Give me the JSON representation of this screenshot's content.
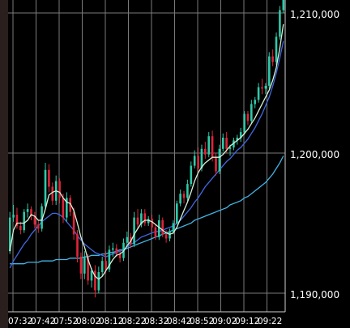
{
  "chart_data": {
    "type": "candlestick",
    "x_tick_labels": [
      "07:32",
      "07:42",
      "07:52",
      "08:02",
      "08:12",
      "08:22",
      "08:32",
      "08:42",
      "08:52",
      "09:02",
      "09:12",
      "09:22"
    ],
    "y_tick_labels": [
      "1,190,000",
      "1,200,000",
      "1,210,000"
    ],
    "y_ticks": [
      1190000,
      1200000,
      1210000
    ],
    "ylim": [
      1189000,
      1211000
    ],
    "grid": true,
    "colors": {
      "background": "#000000",
      "grid": "#7a7a7a",
      "up": "#2ec9a8",
      "down": "#e0253a",
      "ma_short": "#d6f2d6",
      "ma_mid": "#4169e1",
      "ma_long": "#42b4e6"
    },
    "series": [
      {
        "values": [
          [
            1193000,
            1195800,
            1192800,
            1195400
          ],
          [
            1195400,
            1196300,
            1195100,
            1195600
          ],
          [
            1195600,
            1196100,
            1194600,
            1194800
          ],
          [
            1194800,
            1195100,
            1194200,
            1194500
          ],
          [
            1194500,
            1196000,
            1194300,
            1195800
          ],
          [
            1195800,
            1196400,
            1195400,
            1196000
          ],
          [
            1196000,
            1196200,
            1195200,
            1195500
          ],
          [
            1195500,
            1195800,
            1194600,
            1194900
          ],
          [
            1194900,
            1195200,
            1194300,
            1194600
          ],
          [
            1194600,
            1196400,
            1194400,
            1196200
          ],
          [
            1196200,
            1199300,
            1196000,
            1198800
          ],
          [
            1198800,
            1199200,
            1197200,
            1197600
          ],
          [
            1197600,
            1197900,
            1196300,
            1196600
          ],
          [
            1196600,
            1198400,
            1196300,
            1198000
          ],
          [
            1198000,
            1198200,
            1196400,
            1196800
          ],
          [
            1196800,
            1197100,
            1195000,
            1195400
          ],
          [
            1195400,
            1197200,
            1195100,
            1196800
          ],
          [
            1196800,
            1197000,
            1195500,
            1195800
          ],
          [
            1195800,
            1196100,
            1193800,
            1194200
          ],
          [
            1194200,
            1194500,
            1192200,
            1192600
          ],
          [
            1192600,
            1192900,
            1191000,
            1191400
          ],
          [
            1191400,
            1193000,
            1191000,
            1192600
          ],
          [
            1192600,
            1192800,
            1190600,
            1190900
          ],
          [
            1190900,
            1191800,
            1190400,
            1191600
          ],
          [
            1191600,
            1192000,
            1189700,
            1190200
          ],
          [
            1190200,
            1191900,
            1190000,
            1191500
          ],
          [
            1191500,
            1192600,
            1191200,
            1192300
          ],
          [
            1192300,
            1193000,
            1191400,
            1191700
          ],
          [
            1191700,
            1193400,
            1191500,
            1193100
          ],
          [
            1193100,
            1193600,
            1192600,
            1193200
          ],
          [
            1193200,
            1193500,
            1192600,
            1192800
          ],
          [
            1192800,
            1193100,
            1192200,
            1192500
          ],
          [
            1192500,
            1193900,
            1192300,
            1193600
          ],
          [
            1193600,
            1194400,
            1193300,
            1194000
          ],
          [
            1194000,
            1194300,
            1193200,
            1193500
          ],
          [
            1193500,
            1195800,
            1193300,
            1195400
          ],
          [
            1195400,
            1196000,
            1194600,
            1194900
          ],
          [
            1194900,
            1196000,
            1194700,
            1195700
          ],
          [
            1195700,
            1196000,
            1194800,
            1195000
          ],
          [
            1195000,
            1195500,
            1194800,
            1195300
          ],
          [
            1195300,
            1195600,
            1194400,
            1194700
          ],
          [
            1194700,
            1194900,
            1193800,
            1194000
          ],
          [
            1194000,
            1195600,
            1193800,
            1195200
          ],
          [
            1195200,
            1195400,
            1194000,
            1194200
          ],
          [
            1194200,
            1194500,
            1193600,
            1193900
          ],
          [
            1193900,
            1194600,
            1193700,
            1194400
          ],
          [
            1194400,
            1195200,
            1194200,
            1195000
          ],
          [
            1195000,
            1196600,
            1194900,
            1196400
          ],
          [
            1196400,
            1197400,
            1196200,
            1197100
          ],
          [
            1197100,
            1197300,
            1196400,
            1196800
          ],
          [
            1196800,
            1198100,
            1196600,
            1197800
          ],
          [
            1197800,
            1199400,
            1197600,
            1199100
          ],
          [
            1199100,
            1200200,
            1198900,
            1199800
          ],
          [
            1199800,
            1200400,
            1198600,
            1198900
          ],
          [
            1198900,
            1200600,
            1198700,
            1200300
          ],
          [
            1200300,
            1200800,
            1199600,
            1199900
          ],
          [
            1199900,
            1201500,
            1199700,
            1201200
          ],
          [
            1201200,
            1201600,
            1199400,
            1199700
          ],
          [
            1199700,
            1200000,
            1198400,
            1198700
          ],
          [
            1198700,
            1200600,
            1198500,
            1200300
          ],
          [
            1200300,
            1201400,
            1200100,
            1201100
          ],
          [
            1201100,
            1201500,
            1200000,
            1200300
          ],
          [
            1200300,
            1200600,
            1199800,
            1200400
          ],
          [
            1200400,
            1201100,
            1200200,
            1200900
          ],
          [
            1200900,
            1201300,
            1200600,
            1201100
          ],
          [
            1201100,
            1201800,
            1200800,
            1201500
          ],
          [
            1201500,
            1203000,
            1201300,
            1202800
          ],
          [
            1202800,
            1203000,
            1202000,
            1202300
          ],
          [
            1202300,
            1203800,
            1202100,
            1203500
          ],
          [
            1203500,
            1204000,
            1203200,
            1203800
          ],
          [
            1203800,
            1205000,
            1203600,
            1204700
          ],
          [
            1204700,
            1205300,
            1204200,
            1204600
          ],
          [
            1204600,
            1205000,
            1204200,
            1204800
          ],
          [
            1204800,
            1207200,
            1204600,
            1206900
          ],
          [
            1206900,
            1207400,
            1206200,
            1206500
          ],
          [
            1206500,
            1208600,
            1206300,
            1208300
          ],
          [
            1208300,
            1210500,
            1208100,
            1210200
          ],
          [
            1210200,
            1211800,
            1210000,
            1211500
          ]
        ]
      },
      {
        "values": [
          1193000,
          1194500,
          1195000,
          1195000,
          1195000,
          1195200,
          1195600,
          1195500,
          1195200,
          1195200,
          1196000,
          1197000,
          1197200,
          1197300,
          1197200,
          1196800,
          1196500,
          1196400,
          1195900,
          1195000,
          1194000,
          1193300,
          1192400,
          1191700,
          1191200,
          1191000,
          1191200,
          1191600,
          1192000,
          1192400,
          1192700,
          1192800,
          1193000,
          1193400,
          1193700,
          1194200,
          1194600,
          1195000,
          1195200,
          1195200,
          1195100,
          1194900,
          1194700,
          1194500,
          1194300,
          1194200,
          1194300,
          1194700,
          1195300,
          1195900,
          1196500,
          1197200,
          1198000,
          1198600,
          1199000,
          1199300,
          1199500,
          1199700,
          1199700,
          1199700,
          1199900,
          1200200,
          1200500,
          1200700,
          1200900,
          1201100,
          1201400,
          1201700,
          1202100,
          1202500,
          1203000,
          1203500,
          1204000,
          1204500,
          1205200,
          1206100,
          1207500,
          1209200
        ]
      },
      {
        "values": [
          1191800,
          1192300,
          1192700,
          1193100,
          1193500,
          1193800,
          1194200,
          1194500,
          1194800,
          1195100,
          1195300,
          1195500,
          1195700,
          1195700,
          1195600,
          1195400,
          1195100,
          1194800,
          1194500,
          1194100,
          1193800,
          1193500,
          1193300,
          1193100,
          1192900,
          1192800,
          1192700,
          1192600,
          1192700,
          1192800,
          1192900,
          1193000,
          1193100,
          1193300,
          1193500,
          1193600,
          1193800,
          1194000,
          1194100,
          1194200,
          1194300,
          1194400,
          1194400,
          1194500,
          1194600,
          1194700,
          1194800,
          1195000,
          1195200,
          1195500,
          1195800,
          1196100,
          1196500,
          1196800,
          1197200,
          1197600,
          1197900,
          1198200,
          1198500,
          1198800,
          1199100,
          1199400,
          1199600,
          1199900,
          1200200,
          1200400,
          1200700,
          1201000,
          1201400,
          1201800,
          1202300,
          1202800,
          1203400,
          1204000,
          1204800,
          1205700,
          1206800,
          1208000
        ]
      },
      {
        "values": [
          1192100,
          1192100,
          1192100,
          1192100,
          1192100,
          1192200,
          1192200,
          1192200,
          1192200,
          1192300,
          1192300,
          1192300,
          1192300,
          1192400,
          1192400,
          1192400,
          1192400,
          1192500,
          1192500,
          1192500,
          1192500,
          1192600,
          1192600,
          1192700,
          1192700,
          1192700,
          1192800,
          1192800,
          1192900,
          1192900,
          1193000,
          1193100,
          1193100,
          1193200,
          1193300,
          1193400,
          1193500,
          1193600,
          1193700,
          1193800,
          1193900,
          1194000,
          1194100,
          1194200,
          1194300,
          1194400,
          1194500,
          1194600,
          1194700,
          1194800,
          1194900,
          1195000,
          1195200,
          1195300,
          1195400,
          1195500,
          1195600,
          1195700,
          1195800,
          1195900,
          1196000,
          1196100,
          1196300,
          1196400,
          1196500,
          1196600,
          1196800,
          1196900,
          1197100,
          1197300,
          1197500,
          1197700,
          1197900,
          1198200,
          1198500,
          1198900,
          1199300,
          1199800
        ]
      }
    ]
  }
}
